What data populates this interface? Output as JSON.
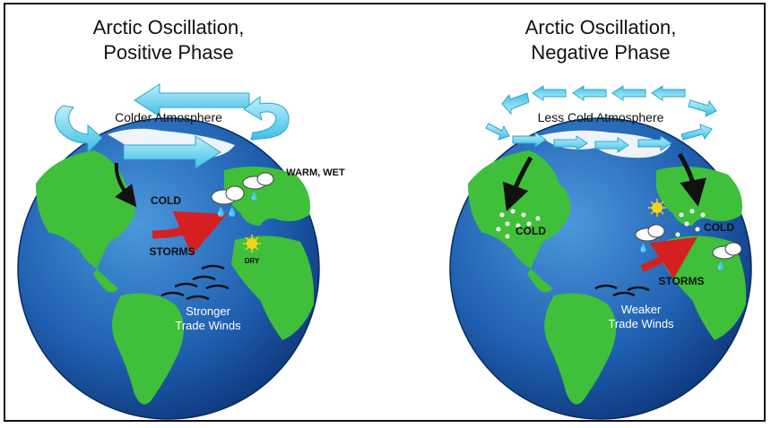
{
  "panels": [
    {
      "title_line1": "Arctic Oscillation,",
      "title_line2": "Positive Phase",
      "atmosphere": "Colder Atmosphere",
      "cold": "COLD",
      "storms": "STORMS",
      "warm_wet": "WARM, WET",
      "dry": "DRY",
      "trade_line1": "Stronger",
      "trade_line2": "Trade Winds"
    },
    {
      "title_line1": "Arctic Oscillation,",
      "title_line2": "Negative Phase",
      "atmosphere": "Less Cold Atmosphere",
      "cold_west": "COLD",
      "cold_east": "COLD",
      "storms": "STORMS",
      "trade_line1": "Weaker",
      "trade_line2": "Trade Winds"
    }
  ],
  "colors": {
    "ocean_deep": "#0d3f88",
    "ocean_light": "#3e86d0",
    "land": "#3fbf3a",
    "arrow_cyan": "#5fd2f0",
    "arrow_red": "#d42020",
    "arrow_black": "#111111",
    "sun": "#f3d21c"
  }
}
